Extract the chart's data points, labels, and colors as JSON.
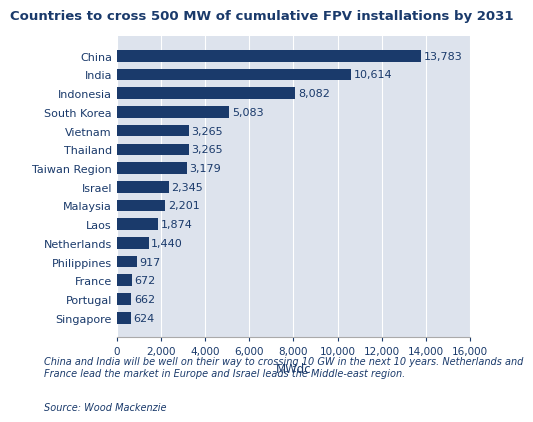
{
  "title": "Countries to cross 500 MW of cumulative FPV installations by 2031",
  "categories": [
    "China",
    "India",
    "Indonesia",
    "South Korea",
    "Vietnam",
    "Thailand",
    "Taiwan Region",
    "Israel",
    "Malaysia",
    "Laos",
    "Netherlands",
    "Philippines",
    "France",
    "Portugal",
    "Singapore"
  ],
  "values": [
    13783,
    10614,
    8082,
    5083,
    3265,
    3265,
    3179,
    2345,
    2201,
    1874,
    1440,
    917,
    672,
    662,
    624
  ],
  "bar_color": "#1a3a6b",
  "plot_bg_color": "#dde3ed",
  "fig_bg_color": "#ffffff",
  "title_color": "#1a3a6b",
  "label_color": "#1a3a6b",
  "xlabel": "MWdc",
  "xlim": [
    0,
    16000
  ],
  "xticks": [
    0,
    2000,
    4000,
    6000,
    8000,
    10000,
    12000,
    14000,
    16000
  ],
  "xtick_labels": [
    "0",
    "2,000",
    "4,000",
    "6,000",
    "8,000",
    "10,000",
    "12,000",
    "14,000",
    "16,000"
  ],
  "footnote": "China and India will be well on their way to crossing 10 GW in the next 10 years. Netherlands and\nFrance lead the market in Europe and Israel leads the Middle-east region.",
  "source": "Source: Wood Mackenzie",
  "title_fontsize": 9.5,
  "label_fontsize": 8,
  "value_fontsize": 8,
  "tick_fontsize": 7.5,
  "footnote_fontsize": 7,
  "source_fontsize": 7
}
